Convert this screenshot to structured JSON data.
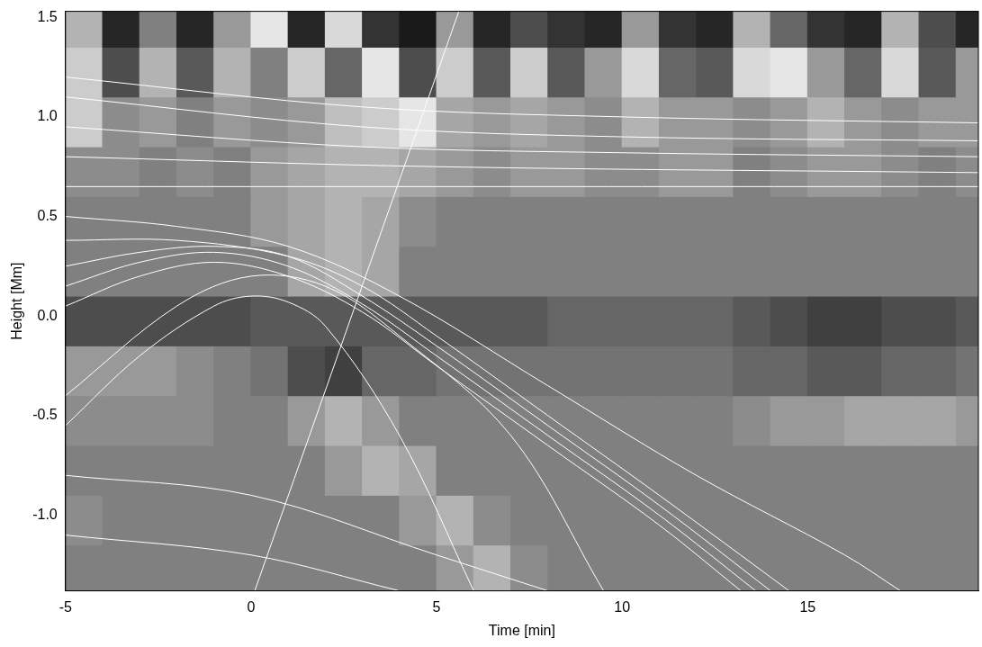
{
  "chart_data": {
    "type": "heatmap",
    "x_label": "Time [min]",
    "y_label": "Height [Mm]",
    "xlim": [
      -5,
      19.6
    ],
    "ylim": [
      -1.38,
      1.53
    ],
    "xticks": [
      -5,
      0,
      5,
      10,
      15
    ],
    "yticks": [
      {
        "value": -1.0,
        "label": "-1.0"
      },
      {
        "value": -0.5,
        "label": "-0.5"
      },
      {
        "value": 0,
        "label": "0.0"
      },
      {
        "value": 0.5,
        "label": "0.5"
      },
      {
        "value": 1.0,
        "label": "1.0"
      },
      {
        "value": 1.5,
        "label": "1.5"
      }
    ],
    "grid": false,
    "cells": {
      "x_edges": [
        -5,
        -4,
        -3,
        -2,
        -1,
        0,
        1,
        2,
        3,
        4,
        5,
        6,
        7,
        8,
        9,
        10,
        11,
        12,
        13,
        14,
        15,
        16,
        17,
        18,
        19,
        20
      ],
      "y_edges": [
        -1.4,
        -1.15,
        -0.9,
        -0.65,
        -0.4,
        -0.15,
        0.1,
        0.35,
        0.6,
        0.85,
        1.1,
        1.35,
        1.6
      ],
      "values": [
        [
          0.5,
          0.5,
          0.5,
          0.5,
          0.5,
          0.5,
          0.5,
          0.5,
          0.5,
          0.5,
          0.6,
          0.7,
          0.55,
          0.5,
          0.5,
          0.5,
          0.5,
          0.5,
          0.5,
          0.5,
          0.5,
          0.5,
          0.5,
          0.5,
          0.5
        ],
        [
          0.55,
          0.5,
          0.5,
          0.5,
          0.5,
          0.5,
          0.5,
          0.5,
          0.5,
          0.6,
          0.7,
          0.55,
          0.5,
          0.5,
          0.5,
          0.5,
          0.5,
          0.5,
          0.5,
          0.5,
          0.5,
          0.5,
          0.5,
          0.5,
          0.5
        ],
        [
          0.5,
          0.5,
          0.5,
          0.5,
          0.5,
          0.5,
          0.5,
          0.6,
          0.7,
          0.65,
          0.5,
          0.5,
          0.5,
          0.5,
          0.5,
          0.5,
          0.5,
          0.5,
          0.5,
          0.5,
          0.5,
          0.5,
          0.5,
          0.5,
          0.5
        ],
        [
          0.55,
          0.55,
          0.55,
          0.55,
          0.5,
          0.5,
          0.6,
          0.7,
          0.6,
          0.5,
          0.5,
          0.5,
          0.5,
          0.5,
          0.5,
          0.5,
          0.5,
          0.5,
          0.55,
          0.6,
          0.6,
          0.65,
          0.65,
          0.65,
          0.6
        ],
        [
          0.6,
          0.6,
          0.6,
          0.55,
          0.5,
          0.45,
          0.3,
          0.25,
          0.4,
          0.4,
          0.45,
          0.45,
          0.45,
          0.45,
          0.45,
          0.45,
          0.45,
          0.45,
          0.4,
          0.4,
          0.35,
          0.35,
          0.4,
          0.4,
          0.45
        ],
        [
          0.3,
          0.3,
          0.3,
          0.3,
          0.3,
          0.35,
          0.35,
          0.35,
          0.35,
          0.35,
          0.35,
          0.35,
          0.35,
          0.4,
          0.4,
          0.4,
          0.4,
          0.4,
          0.35,
          0.3,
          0.25,
          0.25,
          0.3,
          0.3,
          0.35
        ],
        [
          0.5,
          0.5,
          0.5,
          0.5,
          0.5,
          0.5,
          0.65,
          0.7,
          0.65,
          0.5,
          0.5,
          0.5,
          0.5,
          0.5,
          0.5,
          0.5,
          0.5,
          0.5,
          0.5,
          0.5,
          0.5,
          0.5,
          0.5,
          0.5,
          0.5
        ],
        [
          0.5,
          0.5,
          0.5,
          0.5,
          0.5,
          0.6,
          0.65,
          0.7,
          0.65,
          0.55,
          0.5,
          0.5,
          0.5,
          0.5,
          0.5,
          0.5,
          0.5,
          0.5,
          0.5,
          0.5,
          0.5,
          0.5,
          0.5,
          0.5,
          0.5
        ],
        [
          0.55,
          0.55,
          0.5,
          0.55,
          0.5,
          0.6,
          0.65,
          0.7,
          0.7,
          0.65,
          0.6,
          0.55,
          0.6,
          0.6,
          0.55,
          0.55,
          0.6,
          0.6,
          0.5,
          0.55,
          0.6,
          0.6,
          0.55,
          0.5,
          0.55
        ],
        [
          0.8,
          0.55,
          0.6,
          0.5,
          0.6,
          0.55,
          0.6,
          0.75,
          0.8,
          0.9,
          0.65,
          0.6,
          0.65,
          0.6,
          0.55,
          0.7,
          0.6,
          0.6,
          0.55,
          0.6,
          0.7,
          0.6,
          0.55,
          0.6,
          0.6
        ],
        [
          0.8,
          0.3,
          0.7,
          0.35,
          0.7,
          0.5,
          0.8,
          0.4,
          0.9,
          0.3,
          0.8,
          0.35,
          0.8,
          0.35,
          0.6,
          0.85,
          0.4,
          0.35,
          0.85,
          0.9,
          0.6,
          0.4,
          0.85,
          0.35,
          0.6
        ],
        [
          0.7,
          0.15,
          0.5,
          0.15,
          0.6,
          0.9,
          0.15,
          0.85,
          0.2,
          0.1,
          0.6,
          0.15,
          0.3,
          0.2,
          0.15,
          0.6,
          0.2,
          0.15,
          0.7,
          0.4,
          0.2,
          0.15,
          0.7,
          0.3,
          0.15
        ]
      ]
    },
    "color": "#ffffff",
    "series": [
      {
        "x": [
          0.1,
          5.6
        ],
        "values": [
          -1.38,
          1.53
        ]
      },
      {
        "x": [
          -5,
          -3,
          -1,
          1,
          3,
          5,
          8,
          11,
          13.2
        ],
        "values": [
          0.05,
          0.2,
          0.27,
          0.2,
          0.02,
          -0.25,
          -0.65,
          -1.05,
          -1.38
        ]
      },
      {
        "x": [
          -5,
          -3,
          -1,
          1,
          3,
          5,
          8,
          11,
          13.6
        ],
        "values": [
          0.15,
          0.27,
          0.32,
          0.25,
          0.06,
          -0.2,
          -0.6,
          -1.0,
          -1.38
        ]
      },
      {
        "x": [
          -5,
          -3,
          -1,
          1,
          3,
          5,
          8,
          11,
          14
        ],
        "values": [
          0.25,
          0.32,
          0.35,
          0.3,
          0.1,
          -0.15,
          -0.55,
          -0.95,
          -1.38
        ]
      },
      {
        "x": [
          -5,
          -2,
          1,
          3,
          5,
          8,
          11,
          14.5
        ],
        "values": [
          0.38,
          0.38,
          0.3,
          0.15,
          -0.1,
          -0.5,
          -0.9,
          -1.38
        ]
      },
      {
        "x": [
          -5,
          -2,
          1,
          4,
          8,
          12,
          16,
          17.5
        ],
        "values": [
          0.5,
          0.45,
          0.35,
          0.1,
          -0.35,
          -0.8,
          -1.2,
          -1.38
        ]
      },
      {
        "x": [
          -5,
          -3,
          -1,
          0,
          1,
          2,
          4,
          6
        ],
        "values": [
          -0.55,
          -0.2,
          0.05,
          0.1,
          0.07,
          -0.05,
          -0.6,
          -1.38
        ]
      },
      {
        "x": [
          -5,
          -2,
          0,
          2,
          4,
          7,
          9.5
        ],
        "values": [
          -0.4,
          0.05,
          0.2,
          0.15,
          -0.1,
          -0.6,
          -1.38
        ]
      },
      {
        "x": [
          -5,
          0,
          5,
          8
        ],
        "values": [
          -0.8,
          -0.9,
          -1.2,
          -1.38
        ]
      },
      {
        "x": [
          -5,
          0,
          4
        ],
        "values": [
          -1.1,
          -1.2,
          -1.38
        ]
      },
      {
        "x": [
          -5,
          5,
          19.6
        ],
        "values": [
          0.65,
          0.65,
          0.65
        ]
      },
      {
        "x": [
          -5,
          5,
          19.6
        ],
        "values": [
          0.8,
          0.75,
          0.72
        ]
      },
      {
        "x": [
          -5,
          3,
          10,
          19.6
        ],
        "values": [
          0.95,
          0.85,
          0.82,
          0.8
        ]
      },
      {
        "x": [
          -5,
          3,
          10,
          19.6
        ],
        "values": [
          1.1,
          0.95,
          0.9,
          0.88
        ]
      },
      {
        "x": [
          -5,
          3,
          10,
          19.6
        ],
        "values": [
          1.2,
          1.05,
          1.0,
          0.97
        ]
      }
    ]
  }
}
